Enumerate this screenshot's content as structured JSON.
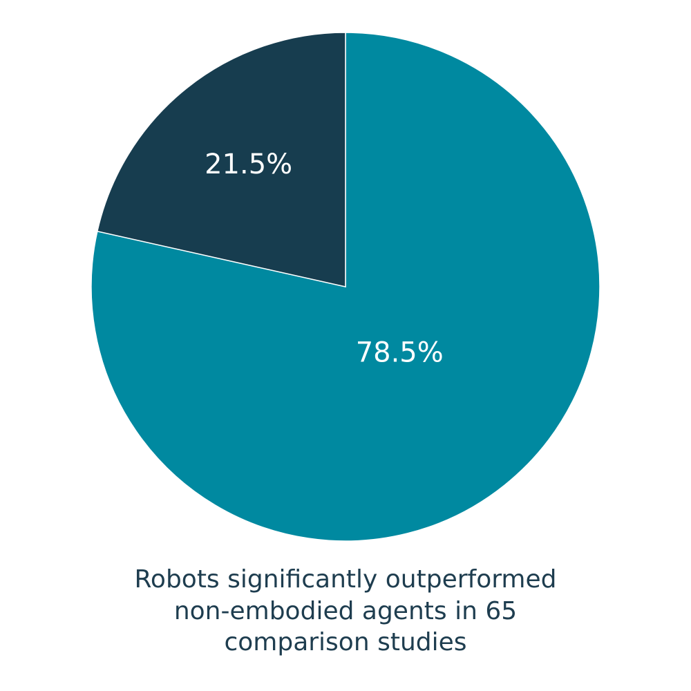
{
  "chart_data": {
    "type": "pie",
    "values": [
      78.5,
      21.5
    ],
    "value_labels": [
      "78.5%",
      "21.5%"
    ],
    "colors": [
      "#0089a0",
      "#173d4f"
    ],
    "caption": [
      "Robots significantly outperformed",
      "non-embodied agents in 65",
      "comparison studies"
    ]
  }
}
